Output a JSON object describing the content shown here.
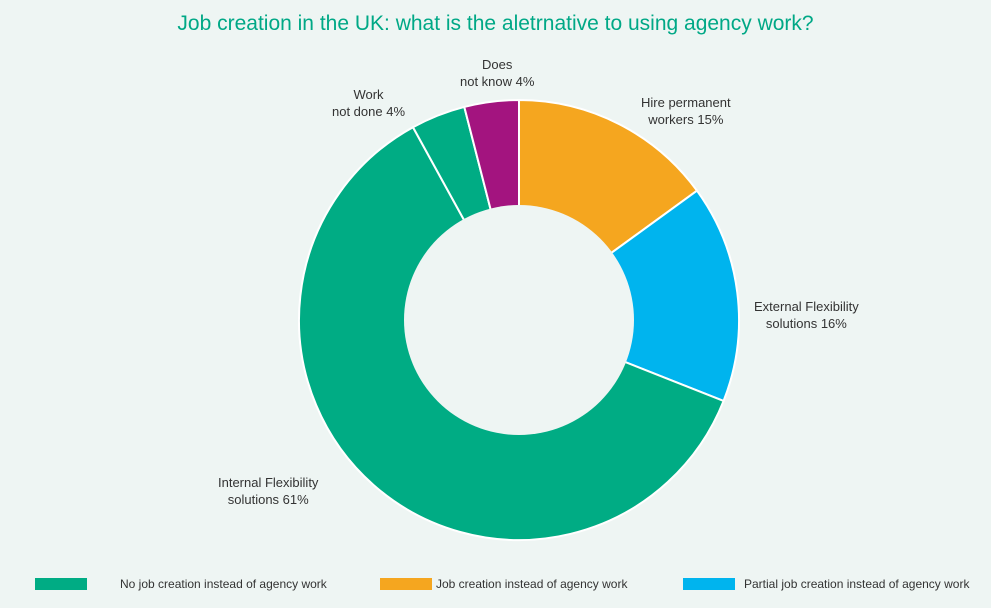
{
  "chart_data": {
    "type": "pie",
    "donut": true,
    "title": "Job creation in the UK: what is the aletrnative to using agency work?",
    "slices": [
      {
        "label_lines": [
          "Hire permanent",
          "workers 15%"
        ],
        "value": 15,
        "color": "#f5a61f"
      },
      {
        "label_lines": [
          "External Flexibility",
          "solutions 16%"
        ],
        "value": 16,
        "color": "#00b4ee"
      },
      {
        "label_lines": [
          "Internal Flexibility",
          "solutions 61%"
        ],
        "value": 61,
        "color": "#00ac84"
      },
      {
        "label_lines": [
          "Work",
          "not done 4%"
        ],
        "value": 4,
        "color": "#00ac84"
      },
      {
        "label_lines": [
          "Does",
          "not know 4%"
        ],
        "value": 4,
        "color": "#a3147f"
      }
    ],
    "legend": [
      {
        "label": "No job creation instead of agency work",
        "color": "#00ac84"
      },
      {
        "label": "Job creation instead of agency work",
        "color": "#f5a61f"
      },
      {
        "label": "Partial job creation instead of agency work",
        "color": "#00b4ee"
      }
    ],
    "legend_position": "bottom"
  }
}
